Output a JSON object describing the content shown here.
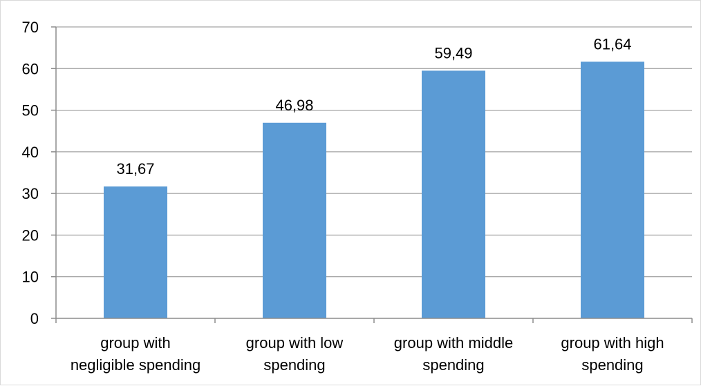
{
  "chart_data": {
    "type": "bar",
    "title": "",
    "xlabel": "",
    "ylabel": "",
    "categories": [
      [
        "group with",
        "negligible spending"
      ],
      [
        "group with low",
        "spending"
      ],
      [
        "group with middle",
        "spending"
      ],
      [
        "group with high",
        "spending"
      ]
    ],
    "values": [
      31.67,
      46.98,
      59.49,
      61.64
    ],
    "data_labels": [
      "31,67",
      "46,98",
      "59,49",
      "61,64"
    ],
    "ylim": [
      0,
      70
    ],
    "yticks": [
      0,
      10,
      20,
      30,
      40,
      50,
      60,
      70
    ],
    "grid": true,
    "legend": "none",
    "bar_color": "#5b9bd5",
    "grid_color": "#8c8c8c",
    "axis_color": "#8c8c8c"
  }
}
